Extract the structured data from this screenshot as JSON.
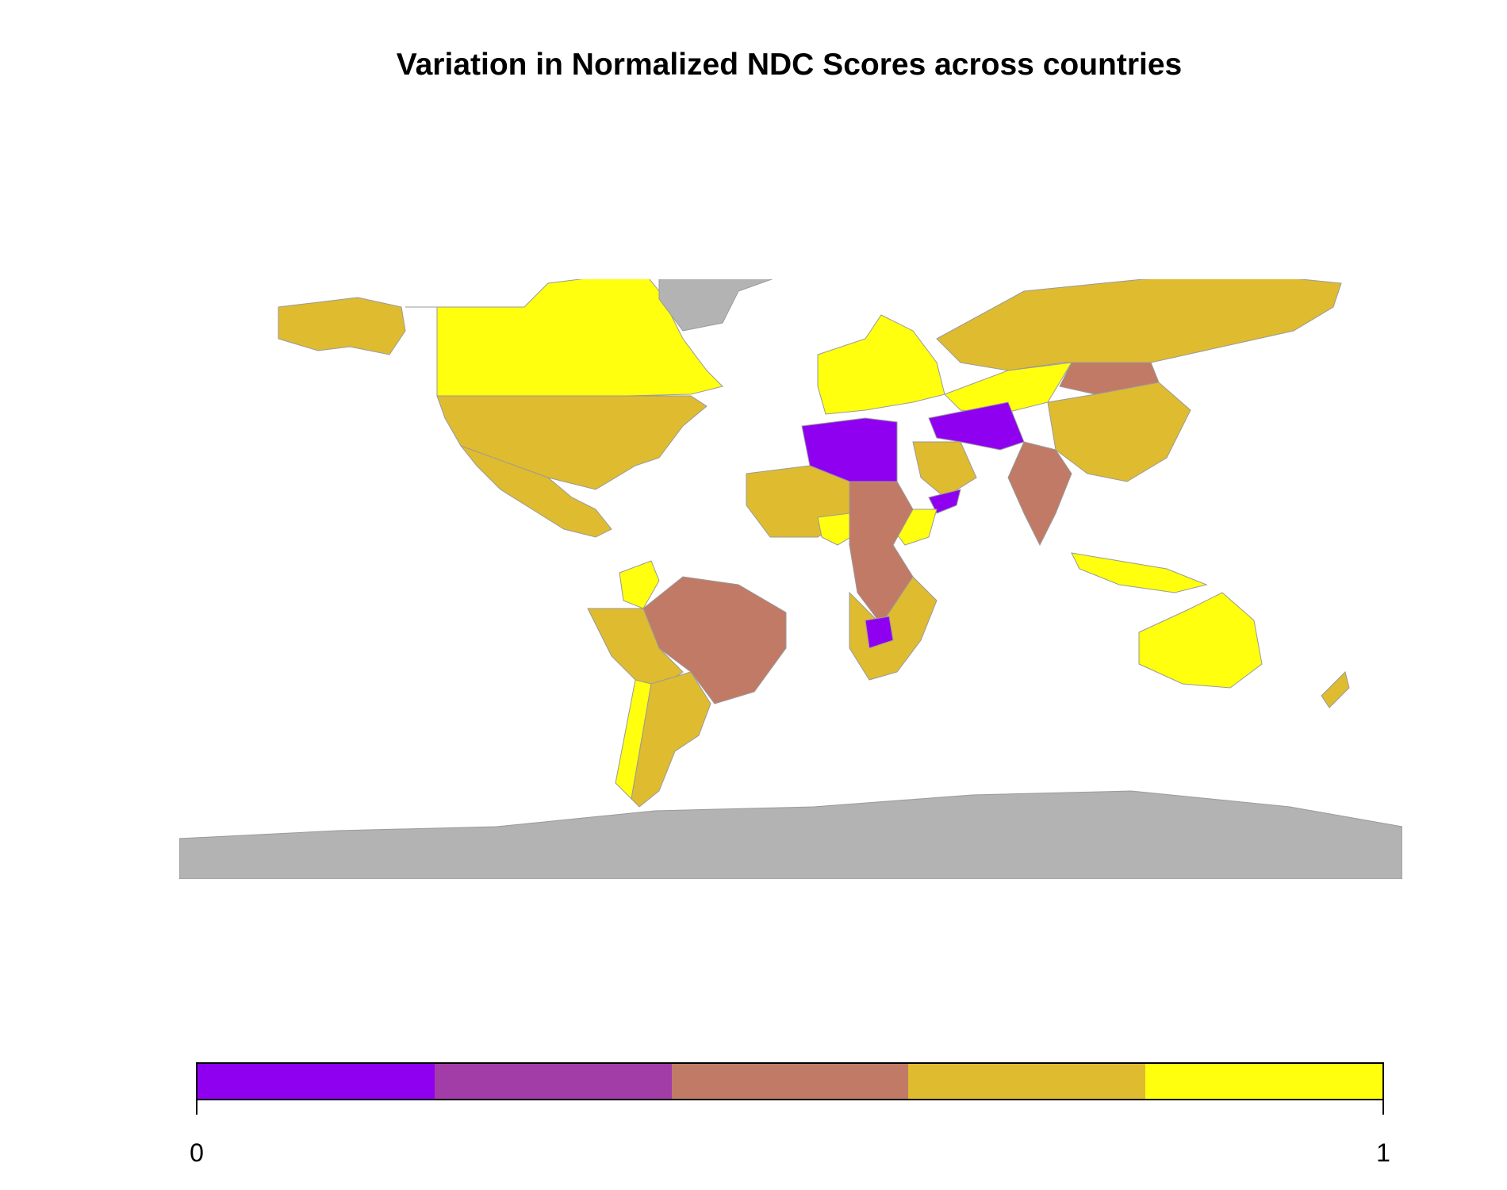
{
  "title": "Variation in Normalized NDC Scores across countries",
  "chart_data": {
    "type": "choropleth",
    "title": "Variation in Normalized NDC Scores across countries",
    "no_data_color": "#b3b3b3",
    "legend": {
      "position": "bottom",
      "min_label": "0",
      "max_label": "1",
      "colors": [
        "#8f00f0",
        "#a23ca6",
        "#c17a66",
        "#dfbb30",
        "#ffff0e"
      ]
    },
    "regions": [
      {
        "name": "Canada",
        "class": 5
      },
      {
        "name": "United States",
        "class": 4
      },
      {
        "name": "Alaska",
        "class": 4
      },
      {
        "name": "Mexico",
        "class": 4
      },
      {
        "name": "Greenland",
        "class": 0
      },
      {
        "name": "Colombia",
        "class": 5
      },
      {
        "name": "Brazil",
        "class": 3
      },
      {
        "name": "Peru/Bolivia",
        "class": 4
      },
      {
        "name": "Chile",
        "class": 5
      },
      {
        "name": "Argentina",
        "class": 4
      },
      {
        "name": "Western Europe",
        "class": 5
      },
      {
        "name": "Russia",
        "class": 4
      },
      {
        "name": "Kazakhstan",
        "class": 5
      },
      {
        "name": "Mongolia",
        "class": 3
      },
      {
        "name": "China",
        "class": 4
      },
      {
        "name": "India",
        "class": 3
      },
      {
        "name": "Iran/Afghanistan",
        "class": 1
      },
      {
        "name": "Algeria/Libya",
        "class": 1
      },
      {
        "name": "Saudi Arabia",
        "class": 4
      },
      {
        "name": "Yemen",
        "class": 1
      },
      {
        "name": "West Africa",
        "class": 4
      },
      {
        "name": "Nigeria",
        "class": 5
      },
      {
        "name": "Ethiopia",
        "class": 5
      },
      {
        "name": "Central Africa",
        "class": 3
      },
      {
        "name": "Southern Africa",
        "class": 4
      },
      {
        "name": "Botswana",
        "class": 1
      },
      {
        "name": "Indonesia",
        "class": 5
      },
      {
        "name": "Australia",
        "class": 5
      },
      {
        "name": "New Zealand",
        "class": 4
      },
      {
        "name": "Antarctica",
        "class": 0
      }
    ]
  }
}
